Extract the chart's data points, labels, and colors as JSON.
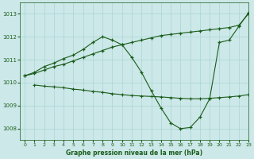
{
  "background_color": "#cce8e8",
  "grid_color": "#aad4d4",
  "line_color": "#1a5c1a",
  "xlabel": "Graphe pression niveau de la mer (hPa)",
  "xlim": [
    -0.5,
    23
  ],
  "ylim": [
    1007.5,
    1013.5
  ],
  "yticks": [
    1008,
    1009,
    1010,
    1011,
    1012,
    1013
  ],
  "xticks": [
    0,
    1,
    2,
    3,
    4,
    5,
    6,
    7,
    8,
    9,
    10,
    11,
    12,
    13,
    14,
    15,
    16,
    17,
    18,
    19,
    20,
    21,
    22,
    23
  ],
  "line_straight_x": [
    0,
    1,
    2,
    3,
    4,
    5,
    6,
    7,
    8,
    9,
    10,
    11,
    12,
    13,
    14,
    15,
    16,
    17,
    18,
    19,
    20,
    21,
    22,
    23
  ],
  "line_straight_y": [
    1010.3,
    1010.4,
    1010.55,
    1010.7,
    1010.8,
    1010.95,
    1011.1,
    1011.25,
    1011.4,
    1011.55,
    1011.65,
    1011.75,
    1011.85,
    1011.95,
    1012.05,
    1012.1,
    1012.15,
    1012.2,
    1012.25,
    1012.3,
    1012.35,
    1012.4,
    1012.5,
    1013.0
  ],
  "line_peak_x": [
    0,
    1,
    2,
    3,
    4,
    5,
    6,
    7,
    8,
    9,
    10,
    11,
    12,
    13,
    14,
    15,
    16,
    17,
    18,
    19,
    20,
    21,
    22,
    23
  ],
  "line_peak_y": [
    1010.3,
    1010.45,
    1010.7,
    1010.85,
    1011.05,
    1011.2,
    1011.45,
    1011.75,
    1012.0,
    1011.85,
    1011.65,
    1011.1,
    1010.45,
    1009.65,
    1008.9,
    1008.25,
    1008.0,
    1008.05,
    1008.5,
    1009.3,
    1011.75,
    1011.85,
    1012.45,
    1013.05
  ],
  "line_flat_x": [
    1,
    2,
    3,
    4,
    5,
    6,
    7,
    8,
    9,
    10,
    11,
    12,
    13,
    14,
    15,
    16,
    17,
    18,
    19,
    20,
    21,
    22,
    23
  ],
  "line_flat_y": [
    1009.9,
    1009.85,
    1009.82,
    1009.78,
    1009.72,
    1009.68,
    1009.62,
    1009.58,
    1009.52,
    1009.48,
    1009.44,
    1009.42,
    1009.4,
    1009.38,
    1009.35,
    1009.32,
    1009.3,
    1009.3,
    1009.32,
    1009.35,
    1009.38,
    1009.42,
    1009.48
  ]
}
